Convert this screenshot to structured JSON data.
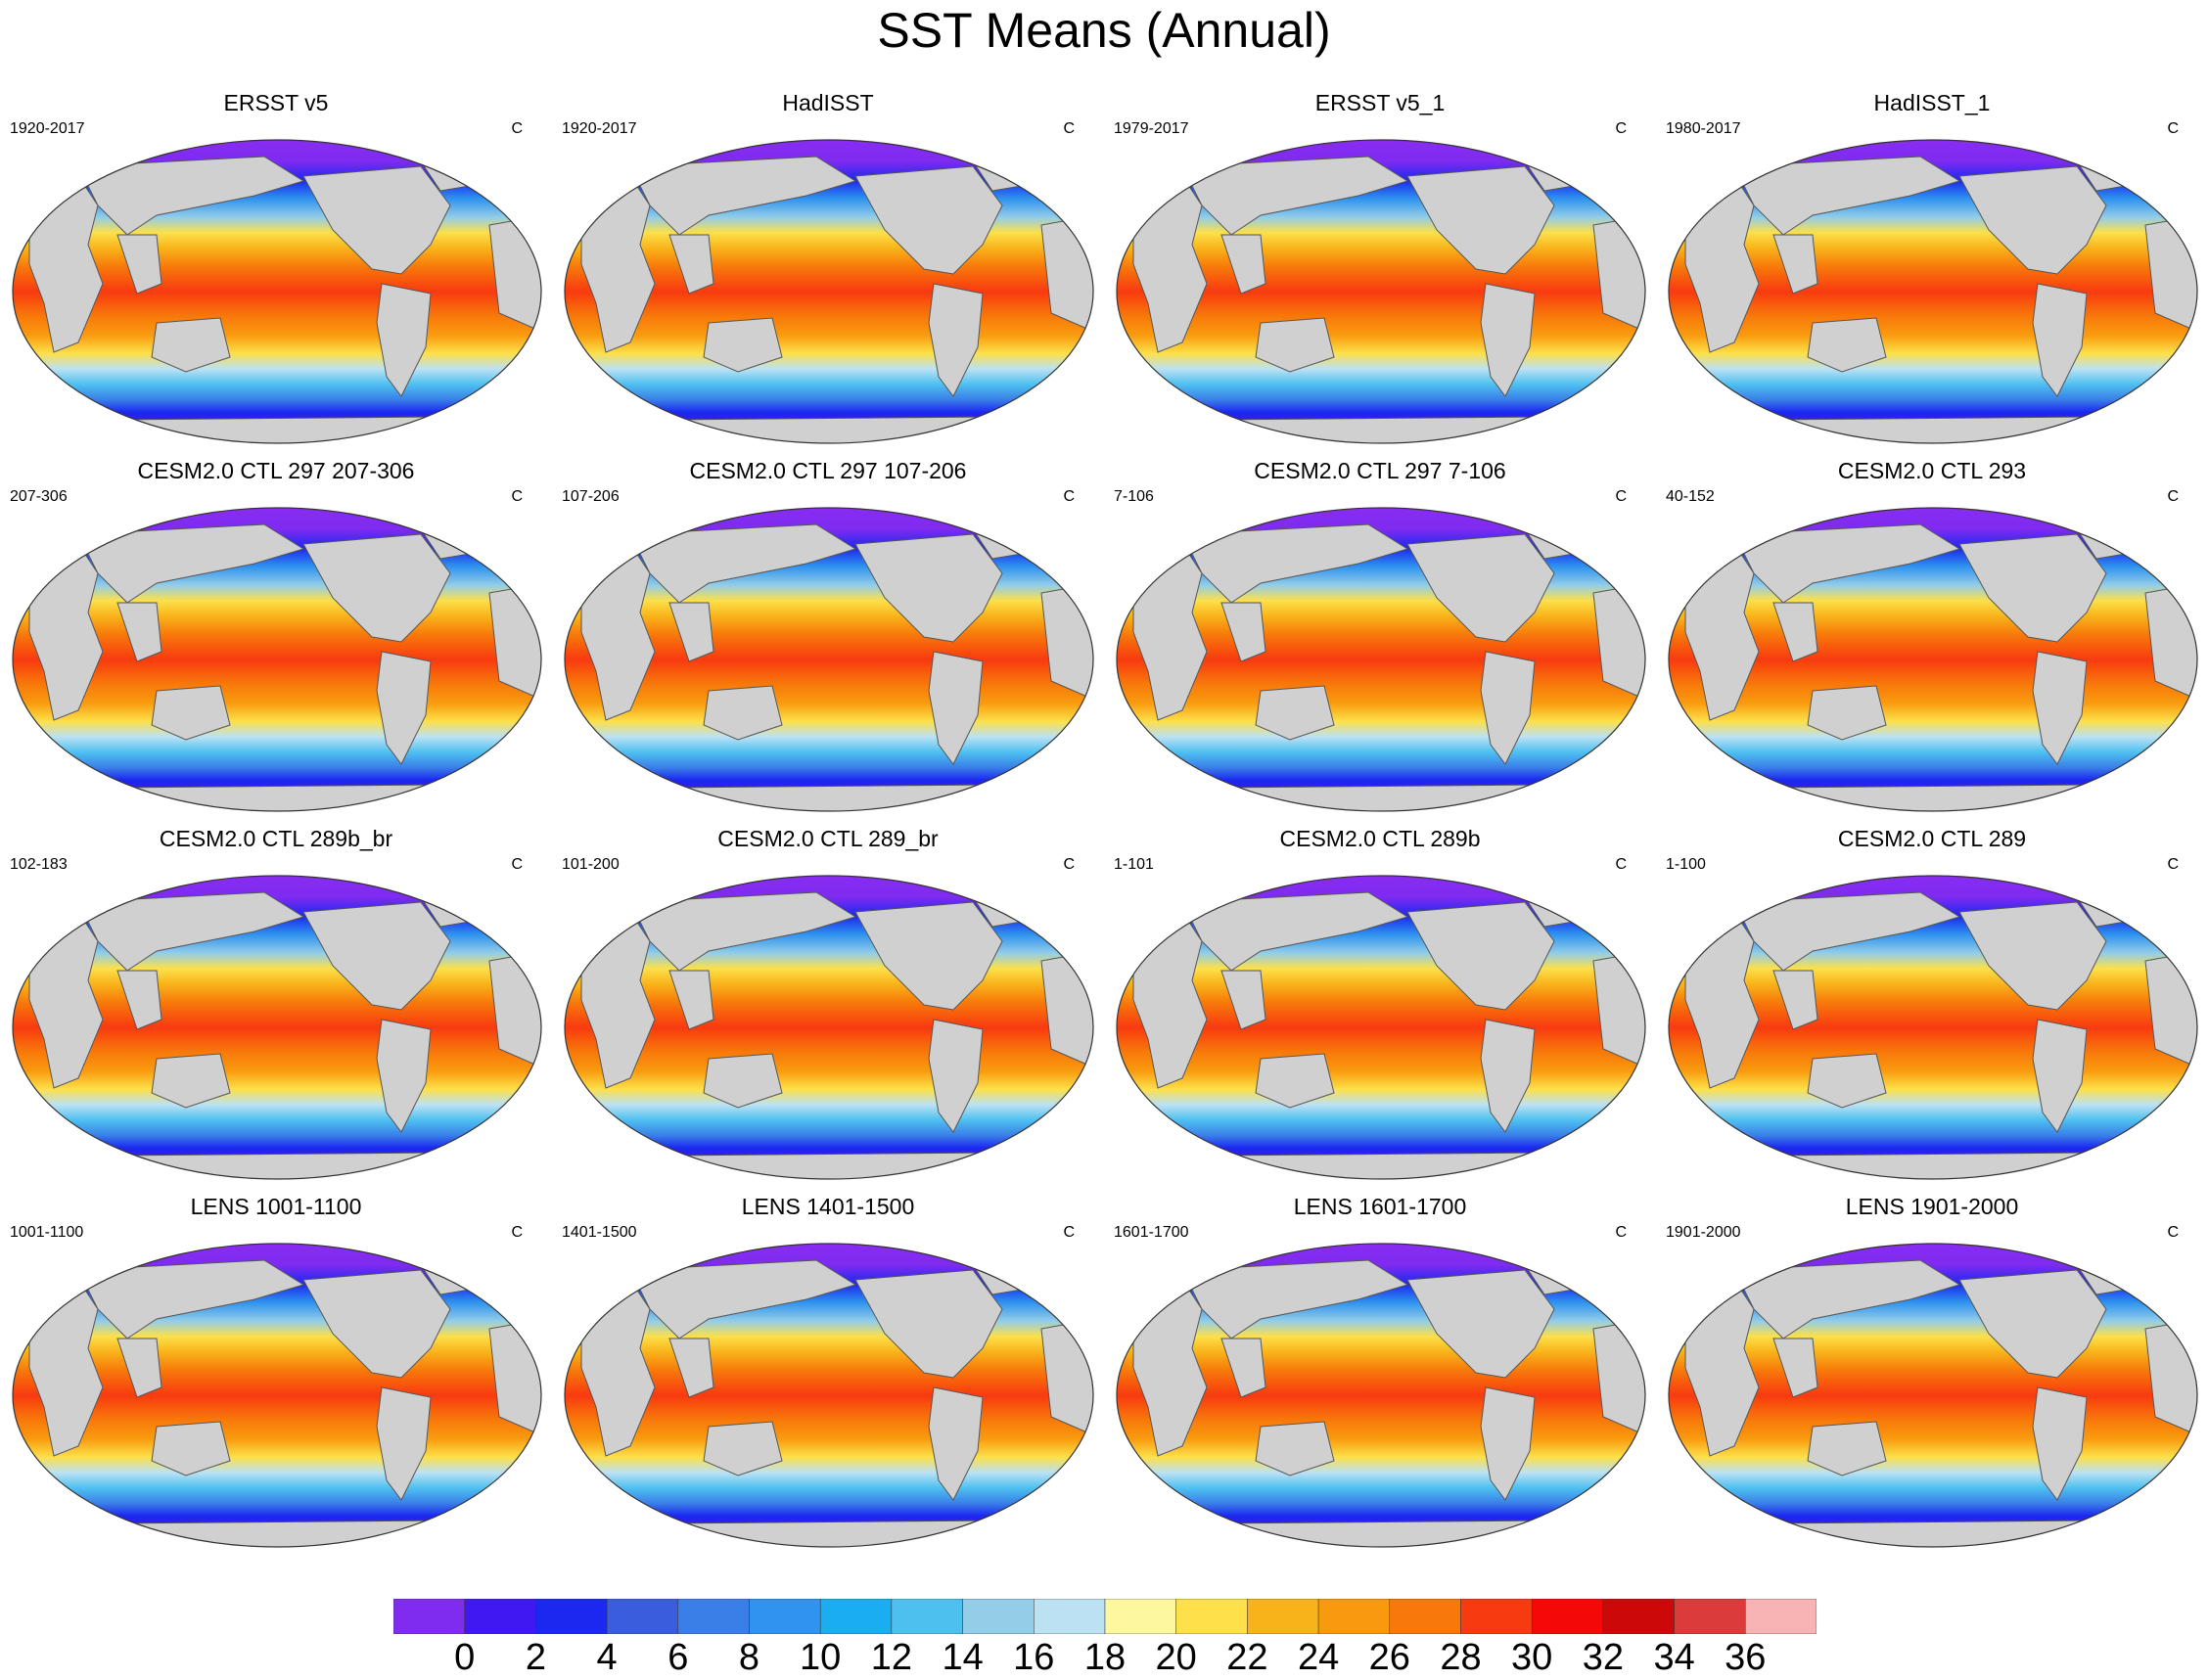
{
  "title": "SST Means (Annual)",
  "units": "C",
  "panels": [
    {
      "title": "ERSST v5",
      "period": "1920-2017",
      "units": "C"
    },
    {
      "title": "HadISST",
      "period": "1920-2017",
      "units": "C"
    },
    {
      "title": "ERSST v5_1",
      "period": "1979-2017",
      "units": "C"
    },
    {
      "title": "HadISST_1",
      "period": "1980-2017",
      "units": "C"
    },
    {
      "title": "CESM2.0 CTL 297 207-306",
      "period": "207-306",
      "units": "C"
    },
    {
      "title": "CESM2.0 CTL 297 107-206",
      "period": "107-206",
      "units": "C"
    },
    {
      "title": "CESM2.0 CTL 297 7-106",
      "period": "7-106",
      "units": "C"
    },
    {
      "title": "CESM2.0 CTL 293",
      "period": "40-152",
      "units": "C"
    },
    {
      "title": "CESM2.0 CTL 289b_br",
      "period": "102-183",
      "units": "C"
    },
    {
      "title": "CESM2.0 CTL 289_br",
      "period": "101-200",
      "units": "C"
    },
    {
      "title": "CESM2.0 CTL 289b",
      "period": "1-101",
      "units": "C"
    },
    {
      "title": "CESM2.0 CTL 289",
      "period": "1-100",
      "units": "C"
    },
    {
      "title": "LENS 1001-1100",
      "period": "1001-1100",
      "units": "C"
    },
    {
      "title": "LENS 1401-1500",
      "period": "1401-1500",
      "units": "C"
    },
    {
      "title": "LENS 1601-1700",
      "period": "1601-1700",
      "units": "C"
    },
    {
      "title": "LENS 1901-2000",
      "period": "1901-2000",
      "units": "C"
    }
  ],
  "colorbar": {
    "labels": [
      "0",
      "2",
      "4",
      "6",
      "8",
      "10",
      "12",
      "14",
      "16",
      "18",
      "20",
      "22",
      "24",
      "26",
      "28",
      "30",
      "32",
      "34",
      "36"
    ],
    "colors": [
      "#7f2bf0",
      "#3f18f2",
      "#1a28f0",
      "#3a5ddd",
      "#3a7ee8",
      "#2f93ef",
      "#1aaef0",
      "#4ec0f0",
      "#93cde8",
      "#bce1f3",
      "#fdf8a0",
      "#fde04a",
      "#f9b31a",
      "#f99a0e",
      "#f8790a",
      "#f83a10",
      "#f40808",
      "#cc0808",
      "#db3b3b",
      "#f8b4b4"
    ]
  },
  "map_colors": {
    "land": "#d0d0d0",
    "outline": "#555555",
    "arctic": "#8a2cf2"
  }
}
